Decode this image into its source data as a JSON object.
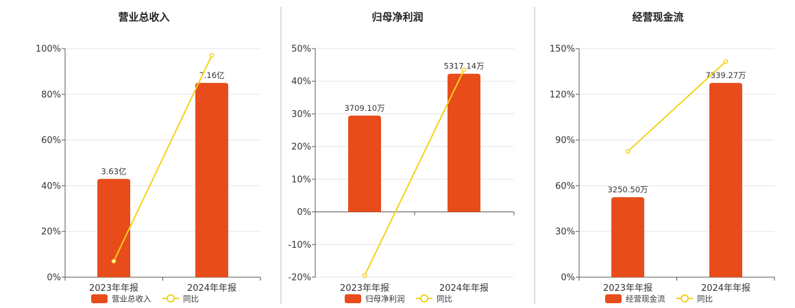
{
  "colors": {
    "bar": "#E84C1A",
    "line": "#F2D21A",
    "grid": "#E3E3EE",
    "axis": "#555555",
    "divider": "#BBBBBB"
  },
  "chart_data": [
    {
      "type": "bar",
      "title": "营业总收入",
      "categories": [
        "2023年年报",
        "2024年年报"
      ],
      "ylim": [
        0,
        100
      ],
      "yticks": [
        "0%",
        "20%",
        "40%",
        "60%",
        "80%",
        "100%"
      ],
      "grid": true,
      "legend_position": "bottom",
      "series": [
        {
          "name": "营业总收入",
          "type": "bar",
          "values": [
            43,
            85
          ],
          "labels": [
            "3.63亿",
            "7.16亿"
          ]
        },
        {
          "name": "同比",
          "type": "line",
          "values": [
            7,
            97
          ]
        }
      ]
    },
    {
      "type": "bar",
      "title": "归母净利润",
      "categories": [
        "2023年年报",
        "2024年年报"
      ],
      "ylim": [
        -20,
        50
      ],
      "yticks": [
        "-20%",
        "-10%",
        "0%",
        "10%",
        "20%",
        "30%",
        "40%",
        "50%"
      ],
      "grid": true,
      "legend_position": "bottom",
      "series": [
        {
          "name": "归母净利润",
          "type": "bar",
          "values": [
            29.5,
            42.3
          ],
          "labels": [
            "3709.10万",
            "5317.14万"
          ]
        },
        {
          "name": "同比",
          "type": "line",
          "values": [
            -19.5,
            43.5
          ]
        }
      ]
    },
    {
      "type": "bar",
      "title": "经营现金流",
      "categories": [
        "2023年年报",
        "2024年年报"
      ],
      "ylim": [
        0,
        150
      ],
      "yticks": [
        "0%",
        "30%",
        "60%",
        "90%",
        "120%",
        "150%"
      ],
      "grid": true,
      "legend_position": "bottom",
      "series": [
        {
          "name": "经营现金流",
          "type": "bar",
          "values": [
            52.5,
            127.5
          ],
          "labels": [
            "3250.50万",
            "7339.27万"
          ]
        },
        {
          "name": "同比",
          "type": "line",
          "values": [
            82.5,
            141.5
          ]
        }
      ]
    }
  ]
}
